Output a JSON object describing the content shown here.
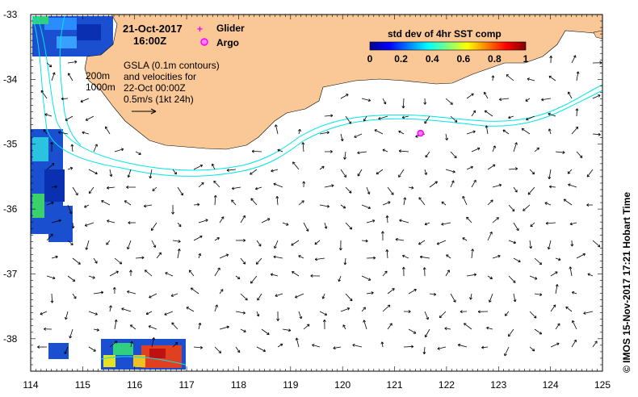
{
  "map": {
    "date_line1": "21-Oct-2017",
    "date_line2": "16:00Z",
    "x_ticks": [
      "114",
      "115",
      "116",
      "117",
      "118",
      "119",
      "120",
      "121",
      "122",
      "123",
      "124",
      "125"
    ],
    "y_ticks": [
      "-33",
      "-34",
      "-35",
      "-36",
      "-37",
      "-38"
    ],
    "lon_range": [
      114,
      125
    ],
    "lat_range": [
      -38.5,
      -33
    ]
  },
  "legend": {
    "glider_label": "Glider",
    "argo_label": "Argo",
    "glider_color": "#ff00ff",
    "argo_color": "#ff00ff"
  },
  "colorbar": {
    "title": "std dev of 4hr SST comp",
    "ticks": [
      "0",
      "0.2",
      "0.4",
      "0.6",
      "0.8",
      "1"
    ]
  },
  "info": {
    "line1": "GSLA (0.1m contours)",
    "line2": "and velocities for",
    "line3": "22-Oct 00:00Z",
    "line4": "0.5m/s (1kt 24h)"
  },
  "contours": {
    "depth_200": "200m",
    "depth_1000": "1000m"
  },
  "argo_float": {
    "lon": 121.5,
    "lat": -34.83
  },
  "credit": "© IMOS 15-Nov-2017 17:21 Hobart Time",
  "colors": {
    "land": "#fac896",
    "isobath": "#00e6e6",
    "arrow": "#000000"
  }
}
